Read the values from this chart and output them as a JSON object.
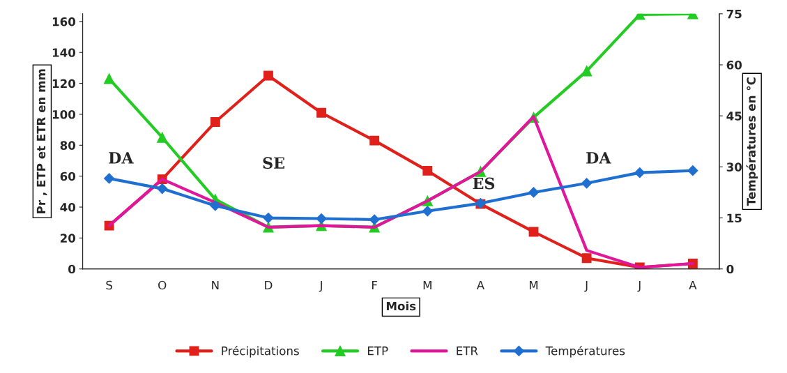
{
  "chart_data": {
    "type": "line",
    "categories": [
      "S",
      "O",
      "N",
      "D",
      "J",
      "F",
      "M",
      "A",
      "M",
      "J",
      "J",
      "A"
    ],
    "series": [
      {
        "name": "Précipitations",
        "color": "#e0201b",
        "marker": "square",
        "values": [
          28,
          58,
          95,
          125,
          101,
          83,
          63.5,
          42,
          24,
          7,
          1,
          3.5
        ]
      },
      {
        "name": "ETP",
        "color": "#22cc22",
        "marker": "triangle",
        "values": [
          123,
          85,
          45,
          27,
          28,
          27,
          44,
          63,
          98,
          128,
          164.5,
          165
        ]
      },
      {
        "name": "ETR",
        "color": "#e0179a",
        "marker": "none",
        "values": [
          28,
          58,
          43,
          27,
          28,
          27,
          44,
          63,
          98.5,
          12,
          1,
          3.5
        ]
      },
      {
        "name": "Températures",
        "color": "#1f6fd1",
        "marker": "diamond",
        "axis": "y2",
        "values": [
          26.6,
          23.6,
          18.6,
          15,
          14.8,
          14.5,
          17,
          19.3,
          22.5,
          25.2,
          28.3,
          28.9
        ]
      }
    ],
    "xlabel": "Mois",
    "ylabel": "Pr , ETP et ETR en mm",
    "y2label": "Températures en °C",
    "ylim": [
      0,
      165
    ],
    "yticks": [
      0,
      20,
      40,
      60,
      80,
      100,
      120,
      140,
      160
    ],
    "y2lim": [
      0,
      75
    ],
    "y2ticks": [
      0,
      15,
      30,
      45,
      60,
      75
    ],
    "annotations": [
      "DA",
      "SE",
      "ES",
      "DA"
    ],
    "grid": false,
    "legend": "bottom",
    "line_style": "solid"
  }
}
